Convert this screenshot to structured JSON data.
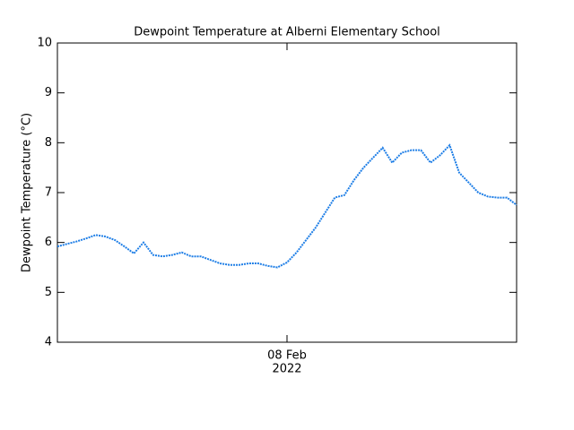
{
  "chart_data": {
    "type": "line",
    "title": "Dewpoint Temperature at Alberni Elementary School",
    "ylabel": "Dewpoint Temperature (°C)",
    "xlabel": "2022",
    "x": [
      -24,
      -23,
      -22,
      -21,
      -20,
      -19,
      -18,
      -17,
      -16,
      -15,
      -14,
      -13,
      -12,
      -11,
      -10,
      -9,
      -8,
      -7,
      -6,
      -5,
      -4,
      -3,
      -2,
      -1,
      0,
      1,
      2,
      3,
      4,
      5,
      6,
      7,
      8,
      9,
      10,
      11,
      12,
      13,
      14,
      15,
      16,
      17,
      18,
      19,
      20,
      21,
      22,
      23,
      24
    ],
    "series": [
      {
        "color": "#1e7ee6",
        "values": [
          5.92,
          5.97,
          6.02,
          6.08,
          6.15,
          6.12,
          6.05,
          5.92,
          5.78,
          6.0,
          5.75,
          5.72,
          5.75,
          5.8,
          5.72,
          5.72,
          5.65,
          5.58,
          5.55,
          5.55,
          5.58,
          5.58,
          5.53,
          5.5,
          5.6,
          5.8,
          6.05,
          6.3,
          6.6,
          6.9,
          6.95,
          7.25,
          7.5,
          7.7,
          7.9,
          7.6,
          7.8,
          7.85,
          7.85,
          7.6,
          7.75,
          7.95,
          7.4,
          7.2,
          7.0,
          6.92,
          6.9,
          6.9,
          6.75
        ]
      }
    ],
    "xlim": [
      -24,
      24
    ],
    "xticks": [
      {
        "value": 0,
        "label": "08 Feb"
      }
    ],
    "ylim": [
      4,
      10
    ],
    "yticks": [
      4,
      5,
      6,
      7,
      8,
      9,
      10
    ]
  }
}
